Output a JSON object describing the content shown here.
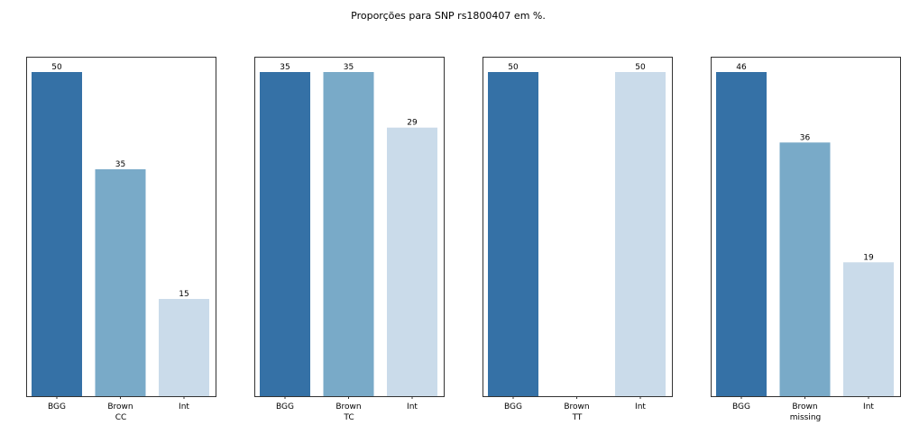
{
  "title": "Proporções para SNP rs1800407 em %.",
  "colors": {
    "BGG": "#3571a6",
    "Brown": "#79aac8",
    "Int": "#cadbea",
    "frame": "#333333",
    "text": "#000000"
  },
  "chart_data": [
    {
      "type": "bar",
      "xlabel": "CC",
      "categories": [
        "BGG",
        "Brown",
        "Int"
      ],
      "values": [
        50,
        35,
        15
      ],
      "value_labels": [
        "50",
        "35",
        "15"
      ],
      "ylim": [
        0,
        50
      ]
    },
    {
      "type": "bar",
      "xlabel": "TC",
      "categories": [
        "BGG",
        "Brown",
        "Int"
      ],
      "values": [
        35,
        35,
        29
      ],
      "value_labels": [
        "35",
        "35",
        "29"
      ],
      "ylim": [
        0,
        35
      ]
    },
    {
      "type": "bar",
      "xlabel": "TT",
      "categories": [
        "BGG",
        "Brown",
        "Int"
      ],
      "values": [
        50,
        0,
        50
      ],
      "value_labels": [
        "50",
        "",
        "50"
      ],
      "ylim": [
        0,
        50
      ]
    },
    {
      "type": "bar",
      "xlabel": "missing",
      "categories": [
        "BGG",
        "Brown",
        "Int"
      ],
      "values": [
        46,
        36,
        19
      ],
      "value_labels": [
        "46",
        "36",
        "19"
      ],
      "ylim": [
        0,
        46
      ]
    }
  ]
}
